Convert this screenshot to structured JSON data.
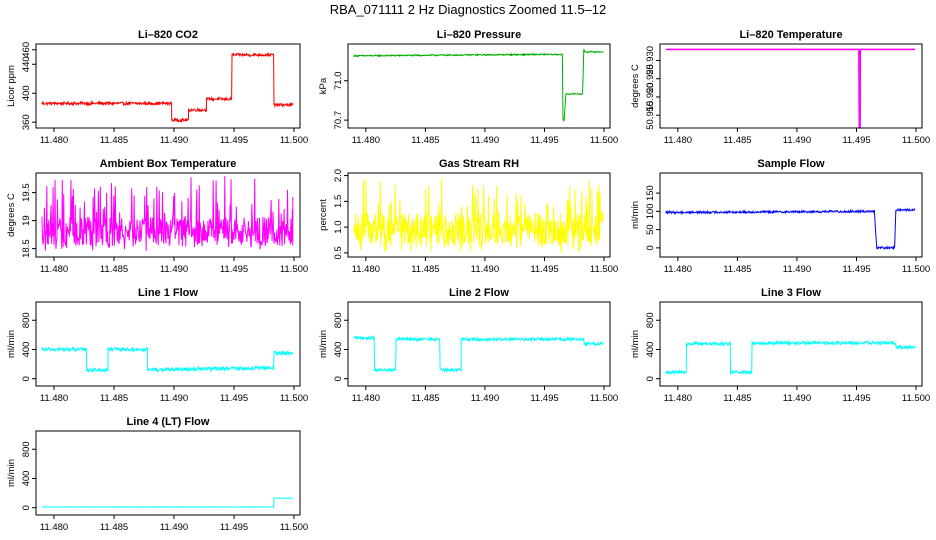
{
  "figure": {
    "title": "RBA_071111  2 Hz Diagnostics Zoomed 11.5–12"
  },
  "chart_data": [
    {
      "type": "line",
      "title": "Li–820 CO2",
      "ylabel": "Licor ppm",
      "xlabel": "",
      "color": "#ff0000",
      "xlim": [
        11.4785,
        11.5005
      ],
      "ylim": [
        352,
        468
      ],
      "xticks": [
        11.48,
        11.485,
        11.49,
        11.495,
        11.5
      ],
      "xticklabels": [
        "11.480",
        "11.485",
        "11.490",
        "11.495",
        "11.500"
      ],
      "yticks": [
        360,
        400,
        440,
        460
      ],
      "yticklabels": [
        "360",
        "400",
        "440",
        "460"
      ],
      "x": [
        11.479,
        11.4898,
        11.4898,
        11.4912,
        11.4912,
        11.4927,
        11.4927,
        11.4948,
        11.4948,
        11.4983,
        11.4983,
        11.4999
      ],
      "y": [
        386,
        386,
        363,
        363,
        377,
        377,
        392,
        392,
        453,
        453,
        384,
        384
      ],
      "noise": 2
    },
    {
      "type": "line",
      "title": "Li–820 Pressure",
      "ylabel": "kPa",
      "xlabel": "",
      "color": "#00b000",
      "xlim": [
        11.4785,
        11.5005
      ],
      "ylim": [
        70.64,
        71.28
      ],
      "xticks": [
        11.48,
        11.485,
        11.49,
        11.495,
        11.5
      ],
      "xticklabels": [
        "11.480",
        "11.485",
        "11.490",
        "11.495",
        "11.500"
      ],
      "yticks": [
        70.7,
        71.0
      ],
      "yticklabels": [
        "70.7",
        "71.0"
      ],
      "x": [
        11.479,
        11.494,
        11.4965,
        11.49655,
        11.49665,
        11.4968,
        11.4982,
        11.4983,
        11.4984,
        11.4999
      ],
      "y": [
        71.19,
        71.2,
        71.2,
        70.7,
        70.7,
        70.9,
        70.9,
        71.24,
        71.22,
        71.22
      ],
      "noise": 0.005
    },
    {
      "type": "line",
      "title": "Li–820 Temperature",
      "ylabel": "degrees C",
      "xlabel": "",
      "color": "#ff00ff",
      "xlim": [
        11.4785,
        11.5005
      ],
      "ylim": [
        50.9115,
        50.9345
      ],
      "xticks": [
        11.48,
        11.485,
        11.49,
        11.495,
        11.5
      ],
      "xticklabels": [
        "11.480",
        "11.485",
        "11.490",
        "11.495",
        "11.500"
      ],
      "yticks": [
        50.915,
        50.92,
        50.925,
        50.93
      ],
      "yticklabels": [
        "50.915",
        "50.920",
        "50.925",
        "50.930"
      ],
      "x": [
        11.479,
        11.4952,
        11.4952,
        11.4953,
        11.4953,
        11.4999
      ],
      "y": [
        50.933,
        50.933,
        50.911,
        50.911,
        50.933,
        50.933
      ],
      "noise": 0
    },
    {
      "type": "line",
      "title": "Ambient Box Temperature",
      "ylabel": "degrees C",
      "xlabel": "",
      "color": "#ff00ff",
      "xlim": [
        11.4785,
        11.5005
      ],
      "ylim": [
        18.35,
        19.85
      ],
      "xticks": [
        11.48,
        11.485,
        11.49,
        11.495,
        11.5
      ],
      "xticklabels": [
        "11.480",
        "11.485",
        "11.490",
        "11.495",
        "11.500"
      ],
      "yticks": [
        18.5,
        19.0,
        19.5
      ],
      "yticklabels": [
        "18.5",
        "19",
        "19.5"
      ],
      "x": [
        11.479,
        11.4999
      ],
      "y": [
        18.8,
        18.8
      ],
      "noise": 0.45,
      "noise_max": 19.8,
      "noise_min": 18.45
    },
    {
      "type": "line",
      "title": "Gas Stream RH",
      "ylabel": "percent",
      "xlabel": "",
      "color": "#ffff00",
      "xlim": [
        11.4785,
        11.5005
      ],
      "ylim": [
        0.42,
        2.05
      ],
      "xticks": [
        11.48,
        11.485,
        11.49,
        11.495,
        11.5
      ],
      "xticklabels": [
        "11.480",
        "11.485",
        "11.490",
        "11.495",
        "11.500"
      ],
      "yticks": [
        0.5,
        1.0,
        1.5,
        2.0
      ],
      "yticklabels": [
        "0.5",
        "1.0",
        "1.5",
        "2.0"
      ],
      "x": [
        11.479,
        11.4999
      ],
      "y": [
        0.95,
        0.95
      ],
      "noise": 0.55,
      "noise_max": 1.95,
      "noise_min": 0.5
    },
    {
      "type": "line",
      "title": "Sample Flow",
      "ylabel": "ml/min",
      "xlabel": "",
      "color": "#0000ff",
      "xlim": [
        11.4785,
        11.5005
      ],
      "ylim": [
        -25,
        205
      ],
      "xticks": [
        11.48,
        11.485,
        11.49,
        11.495,
        11.5
      ],
      "xticklabels": [
        "11.480",
        "11.485",
        "11.490",
        "11.495",
        "11.500"
      ],
      "yticks": [
        0,
        50,
        100,
        150
      ],
      "yticklabels": [
        "0",
        "50",
        "100",
        "150"
      ],
      "x": [
        11.479,
        11.4965,
        11.4967,
        11.4982,
        11.4983,
        11.4999
      ],
      "y": [
        97,
        100,
        0,
        0,
        104,
        104
      ],
      "noise": 3
    },
    {
      "type": "line",
      "title": "Line 1 Flow",
      "ylabel": "ml/min",
      "xlabel": "",
      "color": "#00ffff",
      "xlim": [
        11.4785,
        11.5005
      ],
      "ylim": [
        -100,
        1050
      ],
      "xticks": [
        11.48,
        11.485,
        11.49,
        11.495,
        11.5
      ],
      "xticklabels": [
        "11.480",
        "11.485",
        "11.490",
        "11.495",
        "11.500"
      ],
      "yticks": [
        0,
        400,
        800
      ],
      "yticklabels": [
        "0",
        "400",
        "800"
      ],
      "x": [
        11.479,
        11.4827,
        11.4827,
        11.4845,
        11.4845,
        11.4878,
        11.4878,
        11.4983,
        11.4983,
        11.4999
      ],
      "y": [
        400,
        400,
        120,
        120,
        400,
        400,
        120,
        150,
        350,
        350
      ],
      "noise": 25
    },
    {
      "type": "line",
      "title": "Line 2 Flow",
      "ylabel": "ml/min",
      "xlabel": "",
      "color": "#00ffff",
      "xlim": [
        11.4785,
        11.5005
      ],
      "ylim": [
        -100,
        1050
      ],
      "xticks": [
        11.48,
        11.485,
        11.49,
        11.495,
        11.5
      ],
      "xticklabels": [
        "11.480",
        "11.485",
        "11.490",
        "11.495",
        "11.500"
      ],
      "yticks": [
        0,
        400,
        800
      ],
      "yticklabels": [
        "0",
        "400",
        "800"
      ],
      "x": [
        11.479,
        11.4807,
        11.4807,
        11.4825,
        11.4825,
        11.4862,
        11.4862,
        11.488,
        11.488,
        11.4983,
        11.4983,
        11.4999
      ],
      "y": [
        560,
        560,
        120,
        120,
        540,
        540,
        120,
        120,
        540,
        540,
        480,
        480
      ],
      "noise": 20
    },
    {
      "type": "line",
      "title": "Line 3 Flow",
      "ylabel": "ml/min",
      "xlabel": "",
      "color": "#00ffff",
      "xlim": [
        11.4785,
        11.5005
      ],
      "ylim": [
        -100,
        1050
      ],
      "xticks": [
        11.48,
        11.485,
        11.49,
        11.495,
        11.5
      ],
      "xticklabels": [
        "11.480",
        "11.485",
        "11.490",
        "11.495",
        "11.500"
      ],
      "yticks": [
        0,
        400,
        800
      ],
      "yticklabels": [
        "0",
        "400",
        "800"
      ],
      "x": [
        11.479,
        11.4807,
        11.4807,
        11.4844,
        11.4844,
        11.4862,
        11.4862,
        11.4983,
        11.4983,
        11.4999
      ],
      "y": [
        90,
        90,
        480,
        480,
        90,
        90,
        490,
        490,
        430,
        430
      ],
      "noise": 22
    },
    {
      "type": "line",
      "title": "Line 4 (LT) Flow",
      "ylabel": "ml/min",
      "xlabel": "",
      "color": "#00ffff",
      "xlim": [
        11.4785,
        11.5005
      ],
      "ylim": [
        -100,
        1050
      ],
      "xticks": [
        11.48,
        11.485,
        11.49,
        11.495,
        11.5
      ],
      "xticklabels": [
        "11.480",
        "11.485",
        "11.490",
        "11.495",
        "11.500"
      ],
      "yticks": [
        0,
        400,
        800
      ],
      "yticklabels": [
        "0",
        "400",
        "800"
      ],
      "x": [
        11.479,
        11.4983,
        11.4983,
        11.4999
      ],
      "y": [
        10,
        10,
        130,
        130
      ],
      "noise": 3
    }
  ]
}
